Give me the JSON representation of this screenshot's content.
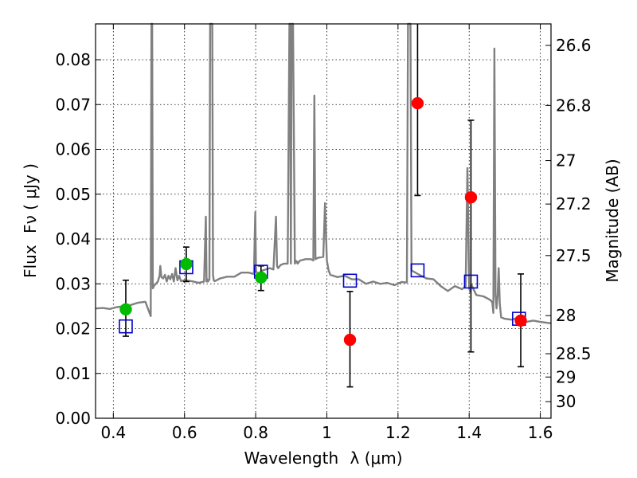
{
  "chart_data": {
    "type": "scatter",
    "title": "",
    "xlabel": "Wavelength",
    "xlabel_symbol": "λ (μm)",
    "ylabel": "Flux",
    "ylabel_symbol": "Fν ( μJy )",
    "y2label": "Magnitude (AB)",
    "xlim": [
      0.35,
      1.63
    ],
    "ylim": [
      0.0,
      0.088
    ],
    "grid": true,
    "x_ticks": [
      0.4,
      0.6,
      0.8,
      1.0,
      1.2,
      1.4,
      1.6
    ],
    "x_tick_labels": [
      "0.4",
      "0.6",
      "0.8",
      "1",
      "1.2",
      "1.4",
      "1.6"
    ],
    "y_ticks": [
      0.0,
      0.01,
      0.02,
      0.03,
      0.04,
      0.05,
      0.06,
      0.07,
      0.08
    ],
    "y_tick_labels": [
      "0.00",
      "0.01",
      "0.02",
      "0.03",
      "0.04",
      "0.05",
      "0.06",
      "0.07",
      "0.08"
    ],
    "y2_ticks": [
      {
        "label": "26.6",
        "flux": 0.0832
      },
      {
        "label": "26.8",
        "flux": 0.0698
      },
      {
        "label": "27",
        "flux": 0.0575
      },
      {
        "label": "27.2",
        "flux": 0.0478
      },
      {
        "label": "27.5",
        "flux": 0.0363
      },
      {
        "label": "28",
        "flux": 0.0229
      },
      {
        "label": "28.5",
        "flux": 0.0144
      },
      {
        "label": "29",
        "flux": 0.0092
      },
      {
        "label": "30",
        "flux": 0.0037
      }
    ],
    "series": [
      {
        "name": "model spectrum",
        "kind": "line",
        "color": "#808080",
        "x": [
          0.35,
          0.37,
          0.39,
          0.41,
          0.43,
          0.45,
          0.47,
          0.49,
          0.505,
          0.507,
          0.509,
          0.511,
          0.515,
          0.525,
          0.53,
          0.532,
          0.535,
          0.54,
          0.545,
          0.55,
          0.555,
          0.56,
          0.565,
          0.57,
          0.575,
          0.58,
          0.585,
          0.59,
          0.6,
          0.62,
          0.64,
          0.655,
          0.66,
          0.662,
          0.664,
          0.666,
          0.67,
          0.672,
          0.674,
          0.676,
          0.678,
          0.68,
          0.682,
          0.685,
          0.7,
          0.72,
          0.74,
          0.76,
          0.78,
          0.795,
          0.799,
          0.801,
          0.803,
          0.806,
          0.82,
          0.84,
          0.85,
          0.857,
          0.86,
          0.863,
          0.87,
          0.88,
          0.89,
          0.895,
          0.897,
          0.899,
          0.901,
          0.905,
          0.91,
          0.912,
          0.914,
          0.916,
          0.918,
          0.925,
          0.94,
          0.955,
          0.962,
          0.965,
          0.968,
          0.975,
          0.99,
          0.995,
          1.0,
          1.005,
          1.01,
          1.03,
          1.05,
          1.07,
          1.09,
          1.11,
          1.13,
          1.15,
          1.17,
          1.19,
          1.21,
          1.225,
          1.228,
          1.232,
          1.235,
          1.238,
          1.26,
          1.28,
          1.3,
          1.32,
          1.34,
          1.36,
          1.38,
          1.39,
          1.395,
          1.4,
          1.403,
          1.406,
          1.41,
          1.42,
          1.44,
          1.455,
          1.462,
          1.465,
          1.468,
          1.471,
          1.474,
          1.477,
          1.48,
          1.483,
          1.486,
          1.49,
          1.5,
          1.52,
          1.54,
          1.56,
          1.58,
          1.6,
          1.63
        ],
        "y": [
          0.0245,
          0.0246,
          0.0244,
          0.0248,
          0.025,
          0.0253,
          0.0258,
          0.026,
          0.0228,
          0.088,
          0.088,
          0.029,
          0.0296,
          0.0305,
          0.0318,
          0.034,
          0.0315,
          0.0312,
          0.032,
          0.0305,
          0.0318,
          0.031,
          0.0322,
          0.0305,
          0.0335,
          0.0308,
          0.0318,
          0.0306,
          0.0308,
          0.0306,
          0.0302,
          0.0305,
          0.045,
          0.0305,
          0.031,
          0.0305,
          0.031,
          0.088,
          0.088,
          0.088,
          0.088,
          0.032,
          0.0308,
          0.0306,
          0.0312,
          0.0316,
          0.0316,
          0.0325,
          0.0325,
          0.0322,
          0.046,
          0.033,
          0.0325,
          0.0322,
          0.033,
          0.0335,
          0.0332,
          0.045,
          0.034,
          0.0335,
          0.0342,
          0.0345,
          0.0345,
          0.088,
          0.088,
          0.0345,
          0.088,
          0.088,
          0.0345,
          0.0352,
          0.0348,
          0.035,
          0.0345,
          0.0352,
          0.0355,
          0.0355,
          0.0352,
          0.072,
          0.0355,
          0.0358,
          0.036,
          0.048,
          0.0352,
          0.033,
          0.032,
          0.0315,
          0.0318,
          0.031,
          0.031,
          0.03,
          0.0305,
          0.03,
          0.0302,
          0.0297,
          0.0304,
          0.0303,
          0.088,
          0.088,
          0.088,
          0.033,
          0.032,
          0.0312,
          0.031,
          0.0295,
          0.0284,
          0.0295,
          0.0288,
          0.0295,
          0.0558,
          0.029,
          0.0282,
          0.0298,
          0.0292,
          0.0275,
          0.0272,
          0.0266,
          0.0262,
          0.0258,
          0.0235,
          0.0825,
          0.0275,
          0.0245,
          0.0275,
          0.0335,
          0.0255,
          0.0225,
          0.0222,
          0.022,
          0.0225,
          0.0215,
          0.0218,
          0.0215,
          0.0212
        ]
      },
      {
        "name": "model band fluxes",
        "kind": "marker-square",
        "color": "#0000cc",
        "x": [
          0.435,
          0.605,
          0.815,
          1.065,
          1.255,
          1.405,
          1.54
        ],
        "y": [
          0.0205,
          0.0337,
          0.0327,
          0.0307,
          0.033,
          0.0305,
          0.0222
        ]
      },
      {
        "name": "detections",
        "kind": "marker-circle",
        "color": "#00bb00",
        "x": [
          0.435,
          0.605,
          0.815
        ],
        "y": [
          0.0243,
          0.0344,
          0.0314
        ],
        "err_low": [
          0.0183,
          0.0305,
          0.0285
        ],
        "err_high": [
          0.0308,
          0.0382,
          0.034
        ]
      },
      {
        "name": "non-detections",
        "kind": "marker-circle",
        "color": "#ff0000",
        "x": [
          1.065,
          1.255,
          1.405,
          1.545
        ],
        "y": [
          0.0175,
          0.0703,
          0.0493,
          0.0218
        ],
        "err_low": [
          0.007,
          0.0497,
          0.0148,
          0.0115
        ],
        "err_high": [
          0.0283,
          0.088,
          0.0665,
          0.0322
        ]
      }
    ]
  }
}
